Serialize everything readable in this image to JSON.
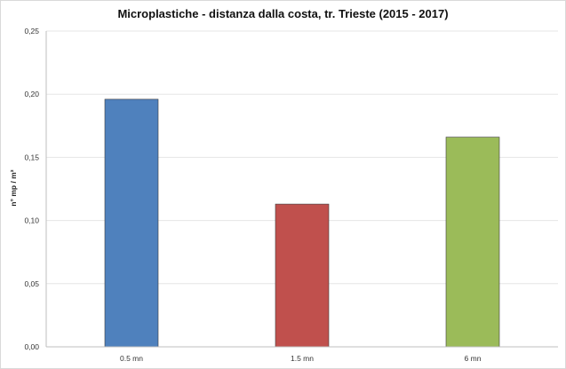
{
  "chart_data": {
    "type": "bar",
    "title": "Microplastiche - distanza dalla costa, tr. Trieste (2015 - 2017)",
    "xlabel": "",
    "ylabel": "n° mp / m³",
    "categories": [
      "0.5 mn",
      "1.5 mn",
      "6 mn"
    ],
    "values": [
      0.196,
      0.113,
      0.166
    ],
    "colors": [
      "#4F81BD",
      "#C0504D",
      "#9BBB59"
    ],
    "ylim": [
      0,
      0.25
    ],
    "yticks": [
      "0,00",
      "0,05",
      "0,10",
      "0,15",
      "0,20",
      "0,25"
    ],
    "grid": true
  }
}
